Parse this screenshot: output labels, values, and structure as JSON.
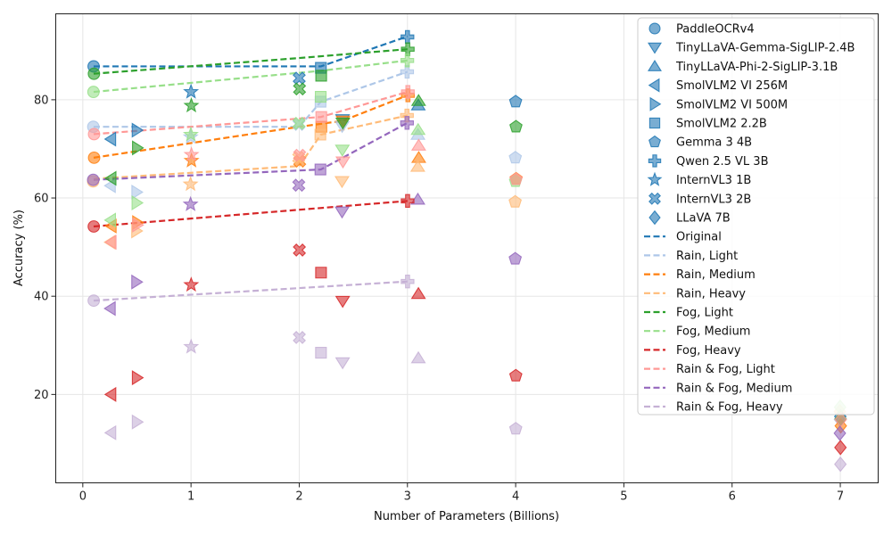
{
  "chart_data": {
    "type": "scatter",
    "title": "",
    "xlabel": "Number of Parameters (Billions)",
    "ylabel": "Accuracy (%)",
    "xlim": [
      -0.25,
      7.35
    ],
    "ylim": [
      2,
      97.5
    ],
    "xticks": [
      0,
      1,
      2,
      3,
      4,
      5,
      6,
      7
    ],
    "yticks": [
      20,
      40,
      60,
      80
    ],
    "grid": true,
    "legend_position": "top-right",
    "conditions": [
      {
        "name": "Original",
        "color": "#1f77b4"
      },
      {
        "name": "Rain, Light",
        "color": "#aec7e8"
      },
      {
        "name": "Rain, Medium",
        "color": "#ff7f0e"
      },
      {
        "name": "Rain, Heavy",
        "color": "#ffbb78"
      },
      {
        "name": "Fog, Light",
        "color": "#2ca02c"
      },
      {
        "name": "Fog, Medium",
        "color": "#98df8a"
      },
      {
        "name": "Fog, Heavy",
        "color": "#d62728"
      },
      {
        "name": "Rain & Fog, Light",
        "color": "#ff9896"
      },
      {
        "name": "Rain & Fog, Medium",
        "color": "#9467bd"
      },
      {
        "name": "Rain & Fog, Heavy",
        "color": "#c5b0d5"
      }
    ],
    "models": [
      {
        "name": "PaddleOCRv4",
        "marker": "circle",
        "params": 0.1,
        "values": [
          86.8,
          74.5,
          68.2,
          63.4,
          85.3,
          81.6,
          54.2,
          73.0,
          63.7,
          39.1
        ]
      },
      {
        "name": "TinyLLaVA-Gemma-SigLIP-2.4B",
        "marker": "triangle-down",
        "params": 2.4,
        "values": [
          76.0,
          74.6,
          75.7,
          63.4,
          75.3,
          69.8,
          39.0,
          67.4,
          57.2,
          26.5
        ]
      },
      {
        "name": "TinyLLaVA-Phi-2-SigLIP-3.1B",
        "marker": "triangle-up",
        "params": 3.1,
        "values": [
          78.9,
          72.9,
          68.2,
          66.4,
          79.8,
          73.9,
          40.5,
          70.7,
          59.7,
          27.4
        ]
      },
      {
        "name": "SmolVLM2 VI 256M",
        "marker": "triangle-left",
        "params": 0.26,
        "values": [
          72.0,
          62.5,
          54.3,
          51.0,
          64.0,
          55.5,
          20.0,
          51.0,
          37.5,
          12.2
        ]
      },
      {
        "name": "SmolVLM2 VI 500M",
        "marker": "triangle-right",
        "params": 0.5,
        "values": [
          73.8,
          61.2,
          55.0,
          53.3,
          70.2,
          59.0,
          23.4,
          54.5,
          42.9,
          14.4
        ]
      },
      {
        "name": "SmolVLM2 2.2B",
        "marker": "square",
        "params": 2.2,
        "values": [
          86.5,
          79.6,
          74.5,
          72.9,
          84.9,
          80.6,
          44.8,
          76.5,
          65.8,
          28.5
        ]
      },
      {
        "name": "Gemma 3 4B",
        "marker": "pentagon",
        "params": 4.0,
        "values": [
          79.6,
          68.2,
          63.9,
          59.2,
          74.5,
          63.4,
          23.8,
          63.8,
          47.6,
          13.0
        ]
      },
      {
        "name": "Qwen 2.5 VL 3B",
        "marker": "plus",
        "params": 3.0,
        "values": [
          92.8,
          85.7,
          80.9,
          76.8,
          90.3,
          88.0,
          59.4,
          81.6,
          75.3,
          43.0
        ]
      },
      {
        "name": "InternVL3 1B",
        "marker": "star",
        "params": 1.0,
        "values": [
          81.6,
          72.4,
          67.6,
          62.8,
          78.8,
          72.9,
          42.3,
          68.8,
          58.7,
          29.7
        ]
      },
      {
        "name": "InternVL3 2B",
        "marker": "x",
        "params": 2.0,
        "values": [
          84.4,
          75.0,
          67.5,
          68.2,
          82.2,
          75.2,
          49.4,
          68.7,
          62.6,
          31.6
        ]
      },
      {
        "name": "LLaVA 7B",
        "marker": "diamond",
        "params": 7.0,
        "values": [
          15.5,
          14.9,
          13.6,
          16.5,
          15.0,
          17.4,
          9.2,
          14.9,
          12.1,
          5.8
        ]
      }
    ],
    "trend_lines": [
      {
        "condition": "Original",
        "points": [
          [
            0.1,
            86.8
          ],
          [
            2.2,
            86.8
          ],
          [
            3.0,
            92.9
          ]
        ]
      },
      {
        "condition": "Rain, Light",
        "points": [
          [
            0.1,
            74.5
          ],
          [
            2.0,
            74.5
          ],
          [
            2.2,
            79.6
          ],
          [
            3.0,
            85.7
          ]
        ]
      },
      {
        "condition": "Rain, Medium",
        "points": [
          [
            0.1,
            68.2
          ],
          [
            2.0,
            74.5
          ],
          [
            2.4,
            75.7
          ],
          [
            3.0,
            80.9
          ]
        ]
      },
      {
        "condition": "Rain, Heavy",
        "points": [
          [
            0.1,
            63.9
          ],
          [
            2.0,
            66.5
          ],
          [
            2.2,
            72.9
          ],
          [
            3.0,
            76.8
          ]
        ]
      },
      {
        "condition": "Fog, Light",
        "points": [
          [
            0.1,
            85.3
          ],
          [
            2.0,
            88.5
          ],
          [
            3.0,
            90.3
          ]
        ]
      },
      {
        "condition": "Fog, Medium",
        "points": [
          [
            0.1,
            81.6
          ],
          [
            2.2,
            85.9
          ],
          [
            3.0,
            88.0
          ]
        ]
      },
      {
        "condition": "Fog, Heavy",
        "points": [
          [
            0.1,
            54.2
          ],
          [
            3.0,
            59.4
          ]
        ]
      },
      {
        "condition": "Rain & Fog, Light",
        "points": [
          [
            0.1,
            73.0
          ],
          [
            2.2,
            76.5
          ],
          [
            3.0,
            81.6
          ]
        ]
      },
      {
        "condition": "Rain & Fog, Medium",
        "points": [
          [
            0.1,
            63.7
          ],
          [
            2.2,
            65.8
          ],
          [
            3.0,
            75.3
          ]
        ]
      },
      {
        "condition": "Rain & Fog, Heavy",
        "points": [
          [
            0.1,
            39.1
          ],
          [
            3.0,
            43.0
          ]
        ]
      }
    ]
  }
}
